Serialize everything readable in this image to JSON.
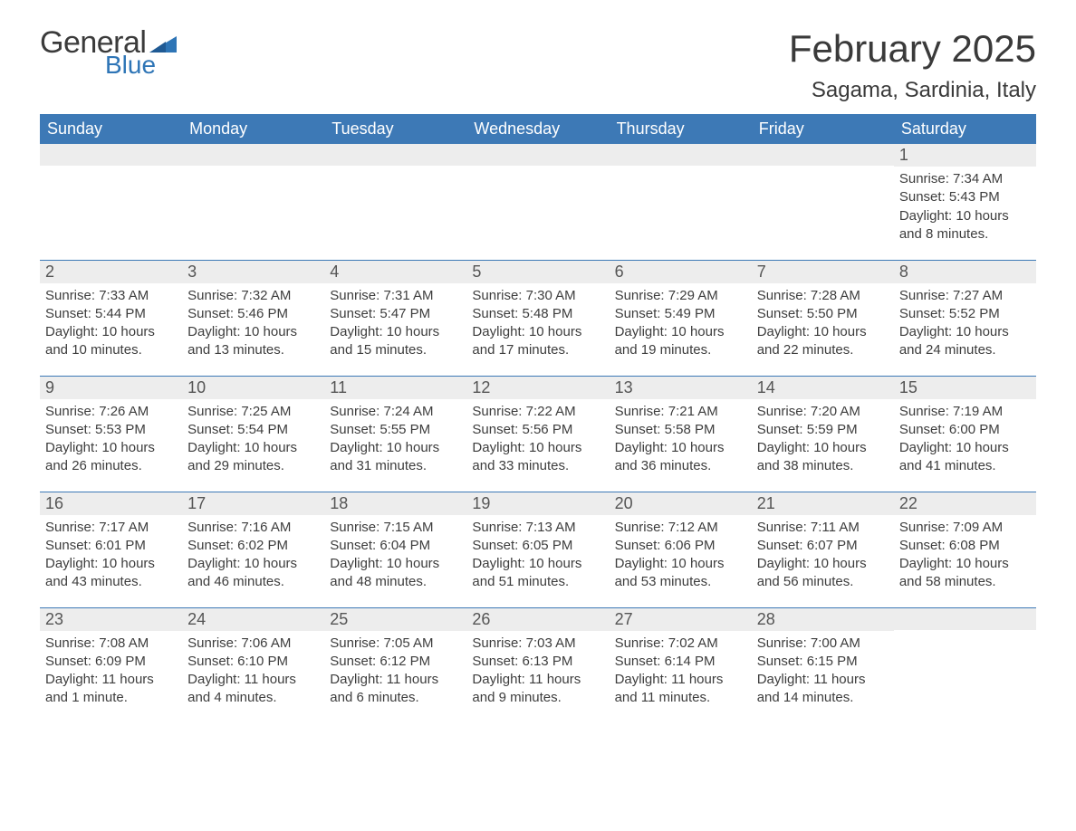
{
  "logo": {
    "text_general": "General",
    "text_blue": "Blue",
    "shape_color": "#2e75b6"
  },
  "title": "February 2025",
  "location": "Sagama, Sardinia, Italy",
  "colors": {
    "header_bg": "#3d79b6",
    "header_text": "#ffffff",
    "daynum_bg": "#ededed",
    "text": "#3d3d3d",
    "row_border": "#3d79b6"
  },
  "typography": {
    "title_fontsize": 42,
    "location_fontsize": 24,
    "header_fontsize": 18,
    "daynum_fontsize": 18,
    "body_fontsize": 15
  },
  "day_headers": [
    "Sunday",
    "Monday",
    "Tuesday",
    "Wednesday",
    "Thursday",
    "Friday",
    "Saturday"
  ],
  "weeks": [
    [
      null,
      null,
      null,
      null,
      null,
      null,
      {
        "n": "1",
        "sunrise": "Sunrise: 7:34 AM",
        "sunset": "Sunset: 5:43 PM",
        "daylight": "Daylight: 10 hours and 8 minutes."
      }
    ],
    [
      {
        "n": "2",
        "sunrise": "Sunrise: 7:33 AM",
        "sunset": "Sunset: 5:44 PM",
        "daylight": "Daylight: 10 hours and 10 minutes."
      },
      {
        "n": "3",
        "sunrise": "Sunrise: 7:32 AM",
        "sunset": "Sunset: 5:46 PM",
        "daylight": "Daylight: 10 hours and 13 minutes."
      },
      {
        "n": "4",
        "sunrise": "Sunrise: 7:31 AM",
        "sunset": "Sunset: 5:47 PM",
        "daylight": "Daylight: 10 hours and 15 minutes."
      },
      {
        "n": "5",
        "sunrise": "Sunrise: 7:30 AM",
        "sunset": "Sunset: 5:48 PM",
        "daylight": "Daylight: 10 hours and 17 minutes."
      },
      {
        "n": "6",
        "sunrise": "Sunrise: 7:29 AM",
        "sunset": "Sunset: 5:49 PM",
        "daylight": "Daylight: 10 hours and 19 minutes."
      },
      {
        "n": "7",
        "sunrise": "Sunrise: 7:28 AM",
        "sunset": "Sunset: 5:50 PM",
        "daylight": "Daylight: 10 hours and 22 minutes."
      },
      {
        "n": "8",
        "sunrise": "Sunrise: 7:27 AM",
        "sunset": "Sunset: 5:52 PM",
        "daylight": "Daylight: 10 hours and 24 minutes."
      }
    ],
    [
      {
        "n": "9",
        "sunrise": "Sunrise: 7:26 AM",
        "sunset": "Sunset: 5:53 PM",
        "daylight": "Daylight: 10 hours and 26 minutes."
      },
      {
        "n": "10",
        "sunrise": "Sunrise: 7:25 AM",
        "sunset": "Sunset: 5:54 PM",
        "daylight": "Daylight: 10 hours and 29 minutes."
      },
      {
        "n": "11",
        "sunrise": "Sunrise: 7:24 AM",
        "sunset": "Sunset: 5:55 PM",
        "daylight": "Daylight: 10 hours and 31 minutes."
      },
      {
        "n": "12",
        "sunrise": "Sunrise: 7:22 AM",
        "sunset": "Sunset: 5:56 PM",
        "daylight": "Daylight: 10 hours and 33 minutes."
      },
      {
        "n": "13",
        "sunrise": "Sunrise: 7:21 AM",
        "sunset": "Sunset: 5:58 PM",
        "daylight": "Daylight: 10 hours and 36 minutes."
      },
      {
        "n": "14",
        "sunrise": "Sunrise: 7:20 AM",
        "sunset": "Sunset: 5:59 PM",
        "daylight": "Daylight: 10 hours and 38 minutes."
      },
      {
        "n": "15",
        "sunrise": "Sunrise: 7:19 AM",
        "sunset": "Sunset: 6:00 PM",
        "daylight": "Daylight: 10 hours and 41 minutes."
      }
    ],
    [
      {
        "n": "16",
        "sunrise": "Sunrise: 7:17 AM",
        "sunset": "Sunset: 6:01 PM",
        "daylight": "Daylight: 10 hours and 43 minutes."
      },
      {
        "n": "17",
        "sunrise": "Sunrise: 7:16 AM",
        "sunset": "Sunset: 6:02 PM",
        "daylight": "Daylight: 10 hours and 46 minutes."
      },
      {
        "n": "18",
        "sunrise": "Sunrise: 7:15 AM",
        "sunset": "Sunset: 6:04 PM",
        "daylight": "Daylight: 10 hours and 48 minutes."
      },
      {
        "n": "19",
        "sunrise": "Sunrise: 7:13 AM",
        "sunset": "Sunset: 6:05 PM",
        "daylight": "Daylight: 10 hours and 51 minutes."
      },
      {
        "n": "20",
        "sunrise": "Sunrise: 7:12 AM",
        "sunset": "Sunset: 6:06 PM",
        "daylight": "Daylight: 10 hours and 53 minutes."
      },
      {
        "n": "21",
        "sunrise": "Sunrise: 7:11 AM",
        "sunset": "Sunset: 6:07 PM",
        "daylight": "Daylight: 10 hours and 56 minutes."
      },
      {
        "n": "22",
        "sunrise": "Sunrise: 7:09 AM",
        "sunset": "Sunset: 6:08 PM",
        "daylight": "Daylight: 10 hours and 58 minutes."
      }
    ],
    [
      {
        "n": "23",
        "sunrise": "Sunrise: 7:08 AM",
        "sunset": "Sunset: 6:09 PM",
        "daylight": "Daylight: 11 hours and 1 minute."
      },
      {
        "n": "24",
        "sunrise": "Sunrise: 7:06 AM",
        "sunset": "Sunset: 6:10 PM",
        "daylight": "Daylight: 11 hours and 4 minutes."
      },
      {
        "n": "25",
        "sunrise": "Sunrise: 7:05 AM",
        "sunset": "Sunset: 6:12 PM",
        "daylight": "Daylight: 11 hours and 6 minutes."
      },
      {
        "n": "26",
        "sunrise": "Sunrise: 7:03 AM",
        "sunset": "Sunset: 6:13 PM",
        "daylight": "Daylight: 11 hours and 9 minutes."
      },
      {
        "n": "27",
        "sunrise": "Sunrise: 7:02 AM",
        "sunset": "Sunset: 6:14 PM",
        "daylight": "Daylight: 11 hours and 11 minutes."
      },
      {
        "n": "28",
        "sunrise": "Sunrise: 7:00 AM",
        "sunset": "Sunset: 6:15 PM",
        "daylight": "Daylight: 11 hours and 14 minutes."
      },
      null
    ]
  ]
}
